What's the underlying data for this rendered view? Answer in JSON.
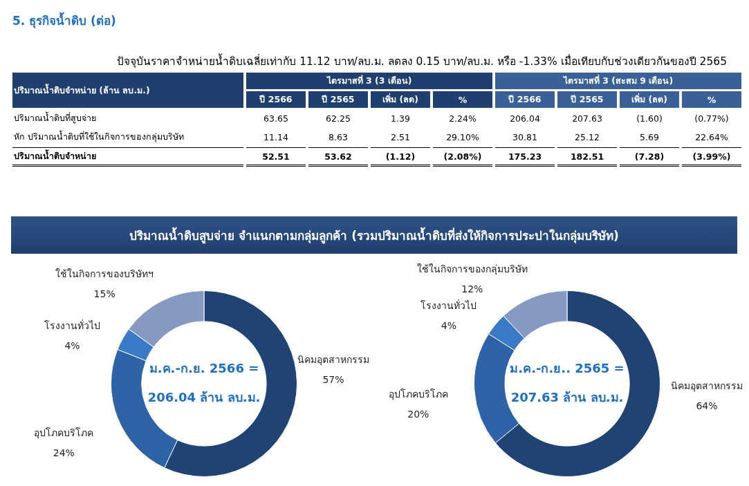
{
  "chart_data": [
    {
      "type": "other",
      "title": "5. ธุรกิจน้ำดิบ (ต่อ)",
      "subtitle": "ปัจจุบันราคาจำหน่ายน้ำดิบเฉลี่ยเท่ากับ 11.12 บาท/ลบ.ม. ลดลง 0.15 บาท/ลบ.ม. หรือ -1.33% เมื่อเทียบกับช่วงเดียวกันของปี 2565",
      "annotations": [
        "ปริมาณน้ำดิบจำหน่าย (ล้าน ลบ.ม.)",
        "ไตรมาสที่ 3 (3 เดือน)",
        "ไตรมาสที่ 3 (สะสม 9 เดือน)",
        "ปี 2566",
        "ปี 2565",
        "เพิ่ม (ลด)",
        "%",
        "ปี 2566",
        "ปี 2565",
        "เพิ่ม (ลด)",
        "%",
        "ปริมาณน้ำดิบที่สูบจ่าย",
        "63.65",
        "62.25",
        "1.39",
        "2.24%",
        "206.04",
        "207.63",
        "(1.60)",
        "(0.77%)",
        "หัก ปริมาณน้ำดิบที่ใช้ในกิจการของกลุ่มบริษัท",
        "11.14",
        "8.63",
        "2.51",
        "29.10%",
        "30.81",
        "25.12",
        "5.69",
        "22.64%",
        "ปริมาณน้ำดิบจำหน่าย",
        "52.51",
        "53.62",
        "(1.12)",
        "(2.08%)",
        "175.23",
        "182.51",
        "(7.28)",
        "(3.99%)"
      ]
    },
    {
      "type": "donut",
      "title": "ปริมาณน้ำดิบสูบจ่าย จำแนกตามกลุ่มลูกค้า (รวมปริมาณน้ำดิบที่ส่งให้กิจการประปาในกลุ่มบริษัท)",
      "categories": [
        "นิคมอุตสาหกรรม",
        "อุปโภคบริโภค",
        "โรงงานทั่วไป",
        "ใช้ในกิจการของบริษัทฯ"
      ],
      "values": [
        57,
        24,
        4,
        15
      ],
      "value_labels": [
        "57%",
        "24%",
        "4%",
        "15%"
      ],
      "colors": [
        "#1f4373",
        "#2e63a8",
        "#3a7ac6",
        "#8599c2"
      ],
      "annotations": [
        "ม.ค.-ก.ย. 2566 =",
        "206.04 ล้าน ลบ.ม."
      ]
    },
    {
      "type": "donut",
      "categories": [
        "นิคมอุตสาหกรรม",
        "อุปโภคบริโภค",
        "โรงงานทั่วไป",
        "ใช้ในกิจการของกลุ่มบริษัท"
      ],
      "values": [
        64,
        20,
        4,
        12
      ],
      "value_labels": [
        "64%",
        "20%",
        "4%",
        "12%"
      ],
      "colors": [
        "#1f4373",
        "#2e63a8",
        "#3a7ac6",
        "#8599c2"
      ],
      "annotations": [
        "ม.ค.-ก.ย.. 2565 =",
        "207.63 ล้าน ลบ.ม."
      ]
    }
  ]
}
